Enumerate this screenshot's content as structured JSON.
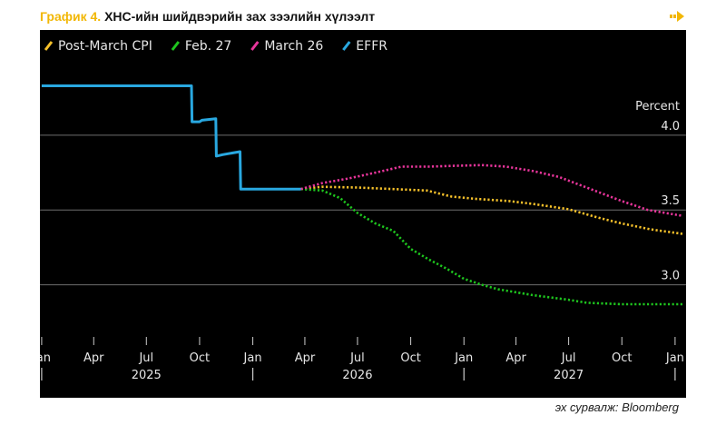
{
  "header": {
    "title_prefix": "График 4.",
    "title_main": "ХНС-ийн шийдвэрийн зах зээлийн хүлээлт",
    "nav_icon": "arrow-right-icon"
  },
  "source": "эх сурвалж: Bloomberg",
  "colors": {
    "background": "#000000",
    "EFFR": "#29a8e0",
    "Post-March CPI": "#f5c02a",
    "Feb. 27": "#1ec51e",
    "March 26": "#e8359b",
    "title_accent": "#f2b705"
  },
  "chart_data": {
    "type": "line",
    "units_label": "Percent",
    "ylim": [
      2.7,
      4.4
    ],
    "y_ticks": [
      3.0,
      3.5,
      4.0
    ],
    "y_tick_labels": [
      "3.0",
      "3.5",
      "4.0"
    ],
    "x_range": [
      "2024-12-29",
      "2028-01-20"
    ],
    "x_ticks": [
      {
        "date": "2025-01-01",
        "label": "Jan"
      },
      {
        "date": "2025-04-01",
        "label": "Apr"
      },
      {
        "date": "2025-07-01",
        "label": "Jul"
      },
      {
        "date": "2025-10-01",
        "label": "Oct"
      },
      {
        "date": "2026-01-01",
        "label": "Jan"
      },
      {
        "date": "2026-04-01",
        "label": "Apr"
      },
      {
        "date": "2026-07-01",
        "label": "Jul"
      },
      {
        "date": "2026-10-01",
        "label": "Oct"
      },
      {
        "date": "2027-01-01",
        "label": "Jan"
      },
      {
        "date": "2027-04-01",
        "label": "Apr"
      },
      {
        "date": "2027-07-01",
        "label": "Jul"
      },
      {
        "date": "2027-10-01",
        "label": "Oct"
      },
      {
        "date": "2028-01-01",
        "label": "Jan"
      }
    ],
    "year_labels": [
      {
        "date": "2025-07-01",
        "label": "2025"
      },
      {
        "date": "2026-07-01",
        "label": "2026"
      },
      {
        "date": "2027-07-01",
        "label": "2027"
      }
    ],
    "year_separators": [
      "2025-01-01",
      "2026-01-01",
      "2027-01-01",
      "2028-01-01"
    ],
    "grid": "horizontal",
    "legend_position": "top-left",
    "series": [
      {
        "name": "Post-March CPI",
        "style": "dotted",
        "points": [
          [
            "2026-03-25",
            3.64
          ],
          [
            "2026-05-01",
            3.655
          ],
          [
            "2026-07-01",
            3.65
          ],
          [
            "2026-09-01",
            3.64
          ],
          [
            "2026-10-29",
            3.63
          ],
          [
            "2026-12-10",
            3.59
          ],
          [
            "2027-01-20",
            3.575
          ],
          [
            "2027-03-20",
            3.56
          ],
          [
            "2027-05-01",
            3.54
          ],
          [
            "2027-07-01",
            3.505
          ],
          [
            "2027-08-20",
            3.45
          ],
          [
            "2027-10-01",
            3.41
          ],
          [
            "2027-11-20",
            3.37
          ],
          [
            "2028-01-15",
            3.34
          ]
        ]
      },
      {
        "name": "Feb. 27",
        "style": "dotted",
        "points": [
          [
            "2026-03-25",
            3.64
          ],
          [
            "2026-05-01",
            3.63
          ],
          [
            "2026-06-01",
            3.58
          ],
          [
            "2026-07-01",
            3.48
          ],
          [
            "2026-08-01",
            3.41
          ],
          [
            "2026-09-01",
            3.36
          ],
          [
            "2026-10-01",
            3.24
          ],
          [
            "2026-11-01",
            3.17
          ],
          [
            "2026-12-01",
            3.11
          ],
          [
            "2027-01-01",
            3.04
          ],
          [
            "2027-02-01",
            3.0
          ],
          [
            "2027-03-01",
            2.97
          ],
          [
            "2027-05-01",
            2.93
          ],
          [
            "2027-07-01",
            2.9
          ],
          [
            "2027-08-01",
            2.88
          ],
          [
            "2027-10-01",
            2.87
          ],
          [
            "2027-12-01",
            2.87
          ],
          [
            "2028-01-15",
            2.87
          ]
        ]
      },
      {
        "name": "March 26",
        "style": "dotted",
        "points": [
          [
            "2026-03-25",
            3.64
          ],
          [
            "2026-05-01",
            3.68
          ],
          [
            "2026-06-15",
            3.71
          ],
          [
            "2026-08-01",
            3.75
          ],
          [
            "2026-09-15",
            3.79
          ],
          [
            "2026-11-01",
            3.79
          ],
          [
            "2026-12-15",
            3.795
          ],
          [
            "2027-02-01",
            3.8
          ],
          [
            "2027-03-15",
            3.79
          ],
          [
            "2027-05-01",
            3.76
          ],
          [
            "2027-06-15",
            3.72
          ],
          [
            "2027-08-01",
            3.65
          ],
          [
            "2027-10-01",
            3.56
          ],
          [
            "2027-11-15",
            3.5
          ],
          [
            "2028-01-15",
            3.46
          ]
        ]
      },
      {
        "name": "EFFR",
        "style": "solid",
        "points": [
          [
            "2025-01-01",
            4.33
          ],
          [
            "2025-09-17",
            4.33
          ],
          [
            "2025-09-18",
            4.09
          ],
          [
            "2025-10-01",
            4.09
          ],
          [
            "2025-10-05",
            4.1
          ],
          [
            "2025-10-29",
            4.11
          ],
          [
            "2025-10-30",
            3.86
          ],
          [
            "2025-11-10",
            3.87
          ],
          [
            "2025-12-10",
            3.89
          ],
          [
            "2025-12-11",
            3.64
          ],
          [
            "2026-03-25",
            3.64
          ]
        ]
      }
    ]
  }
}
